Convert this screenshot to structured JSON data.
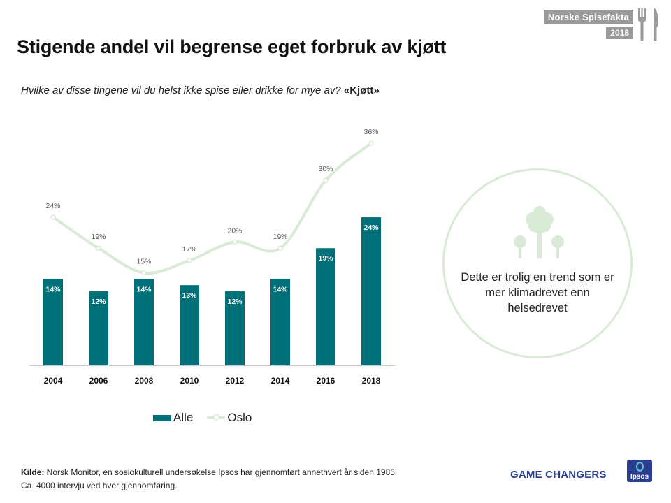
{
  "header": {
    "tag_title": "Norske Spisefakta",
    "tag_year": "2018",
    "title": "Stigende andel vil begrense eget forbruk av kjøtt",
    "question": "Hvilke av disse tingene vil du helst ikke spise eller drikke for mye av? ",
    "question_strong": "«Kjøtt»"
  },
  "chart_data": {
    "type": "bar",
    "categories": [
      "2004",
      "2006",
      "2008",
      "2010",
      "2012",
      "2014",
      "2016",
      "2018"
    ],
    "series": [
      {
        "name": "Alle",
        "type": "bar",
        "values": [
          14,
          12,
          14,
          13,
          12,
          14,
          19,
          24
        ],
        "labels": [
          "14%",
          "12%",
          "14%",
          "13%",
          "12%",
          "14%",
          "19%",
          "24%"
        ],
        "color": "#007078"
      },
      {
        "name": "Oslo",
        "type": "line",
        "values": [
          24,
          19,
          15,
          17,
          20,
          19,
          30,
          36
        ],
        "labels": [
          "24%",
          "19%",
          "15%",
          "17%",
          "20%",
          "19%",
          "30%",
          "36%"
        ],
        "color": "#d9ead6"
      }
    ],
    "title": "",
    "xlabel": "",
    "ylabel": "",
    "ylim": [
      0,
      40
    ],
    "grid": false,
    "legend": "bottom"
  },
  "insight": {
    "text": "Dette er trolig en trend som er mer klimadrevet enn helsedrevet"
  },
  "footer": {
    "source_label": "Kilde:",
    "source_line1": " Norsk Monitor, en sosiokulturell  undersøkelse  Ipsos har gjennomført  annethvert år siden 1985.",
    "source_line2": "Ca. 4000 intervju ved hver gjennomføring.",
    "tagline": "GAME CHANGERS",
    "logo_text": "Ipsos"
  },
  "icons": {
    "utensils": "fork-knife-icon",
    "trees": "trees-icon"
  }
}
